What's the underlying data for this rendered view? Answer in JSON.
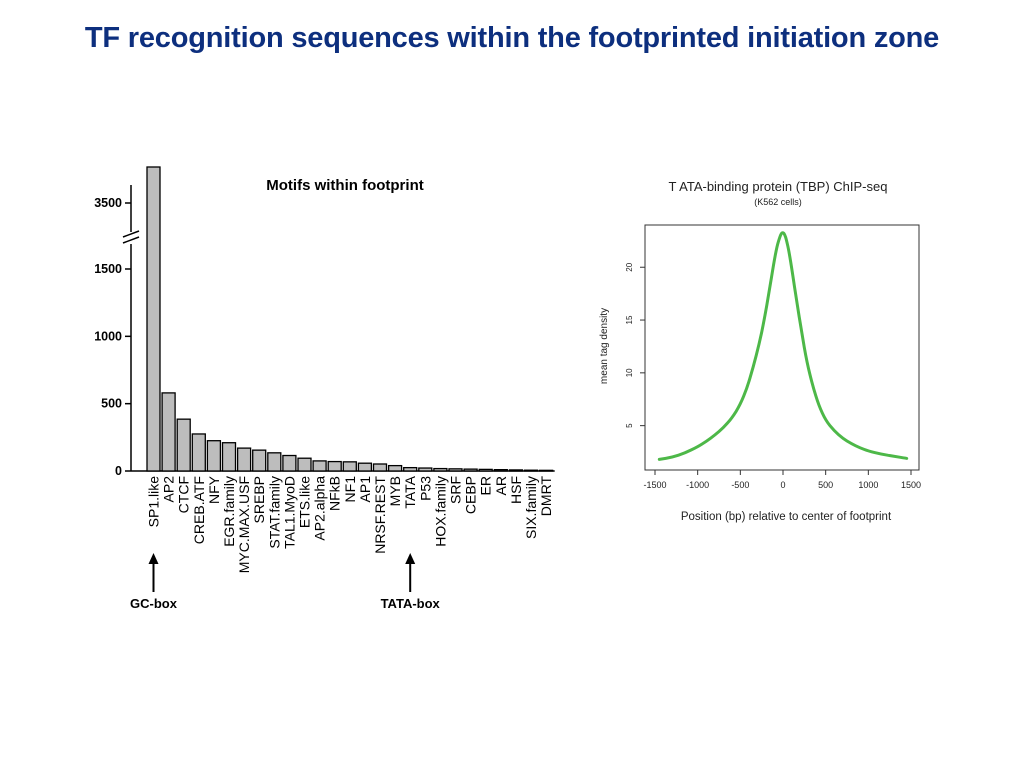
{
  "slide": {
    "title": "TF recognition sequences within the footprinted initiation zone"
  },
  "chart_data": [
    {
      "type": "bar",
      "title": "Motifs within footprint",
      "categories": [
        "SP1.like",
        "AP2",
        "CTCF",
        "CREB.ATF",
        "NFY",
        "EGR.family",
        "MYC.MAX.USF",
        "SREBP",
        "STAT.family",
        "TAL1.MyoD",
        "ETS.like",
        "AP2.alpha",
        "NFkB",
        "NF1",
        "AP1",
        "NRSF.REST",
        "MYB",
        "TATA",
        "P53",
        "HOX.family",
        "SRF",
        "CEBP",
        "ER",
        "AR",
        "HSF",
        "SIX.family",
        "DMRT"
      ],
      "values": [
        3800,
        580,
        385,
        275,
        225,
        210,
        170,
        155,
        135,
        115,
        95,
        75,
        70,
        68,
        58,
        52,
        40,
        25,
        22,
        18,
        16,
        14,
        12,
        10,
        8,
        6,
        5
      ],
      "y_ticks": [
        "0",
        "500",
        "1000",
        "1500",
        "3500"
      ],
      "axis_break": "between 1500 and 3500",
      "annotations": [
        {
          "label": "GC-box",
          "target": "SP1.like"
        },
        {
          "label": "TATA-box",
          "target": "TATA"
        }
      ],
      "bar_color": "#bdbdbd"
    },
    {
      "type": "line",
      "title": "T ATA-binding protein (TBP) ChIP-seq",
      "subtitle": "(K562 cells)",
      "xlabel": "Position (bp) relative to center of footprint",
      "ylabel": "mean tag density",
      "xlim": [
        -1500,
        1500
      ],
      "ylim": [
        0.8,
        24
      ],
      "x_ticks": [
        "-1500",
        "-1000",
        "-500",
        "0",
        "500",
        "1000",
        "1500"
      ],
      "y_ticks": [
        "5",
        "10",
        "15",
        "20"
      ],
      "line_color": "#4db848",
      "x": [
        -1450,
        -1300,
        -1150,
        -1000,
        -900,
        -800,
        -700,
        -600,
        -500,
        -420,
        -350,
        -280,
        -220,
        -160,
        -110,
        -70,
        -40,
        -20,
        0,
        20,
        40,
        70,
        110,
        160,
        220,
        280,
        350,
        420,
        500,
        600,
        700,
        800,
        900,
        1000,
        1150,
        1300,
        1450
      ],
      "y": [
        1.8,
        2.0,
        2.4,
        3.0,
        3.5,
        4.1,
        4.8,
        5.7,
        7.0,
        8.6,
        10.5,
        12.7,
        15.0,
        17.8,
        20.3,
        22.0,
        22.8,
        23.2,
        23.3,
        23.1,
        22.6,
        21.5,
        19.5,
        16.8,
        13.8,
        11.0,
        8.7,
        6.9,
        5.5,
        4.5,
        3.8,
        3.3,
        2.9,
        2.6,
        2.3,
        2.1,
        1.9
      ]
    }
  ]
}
